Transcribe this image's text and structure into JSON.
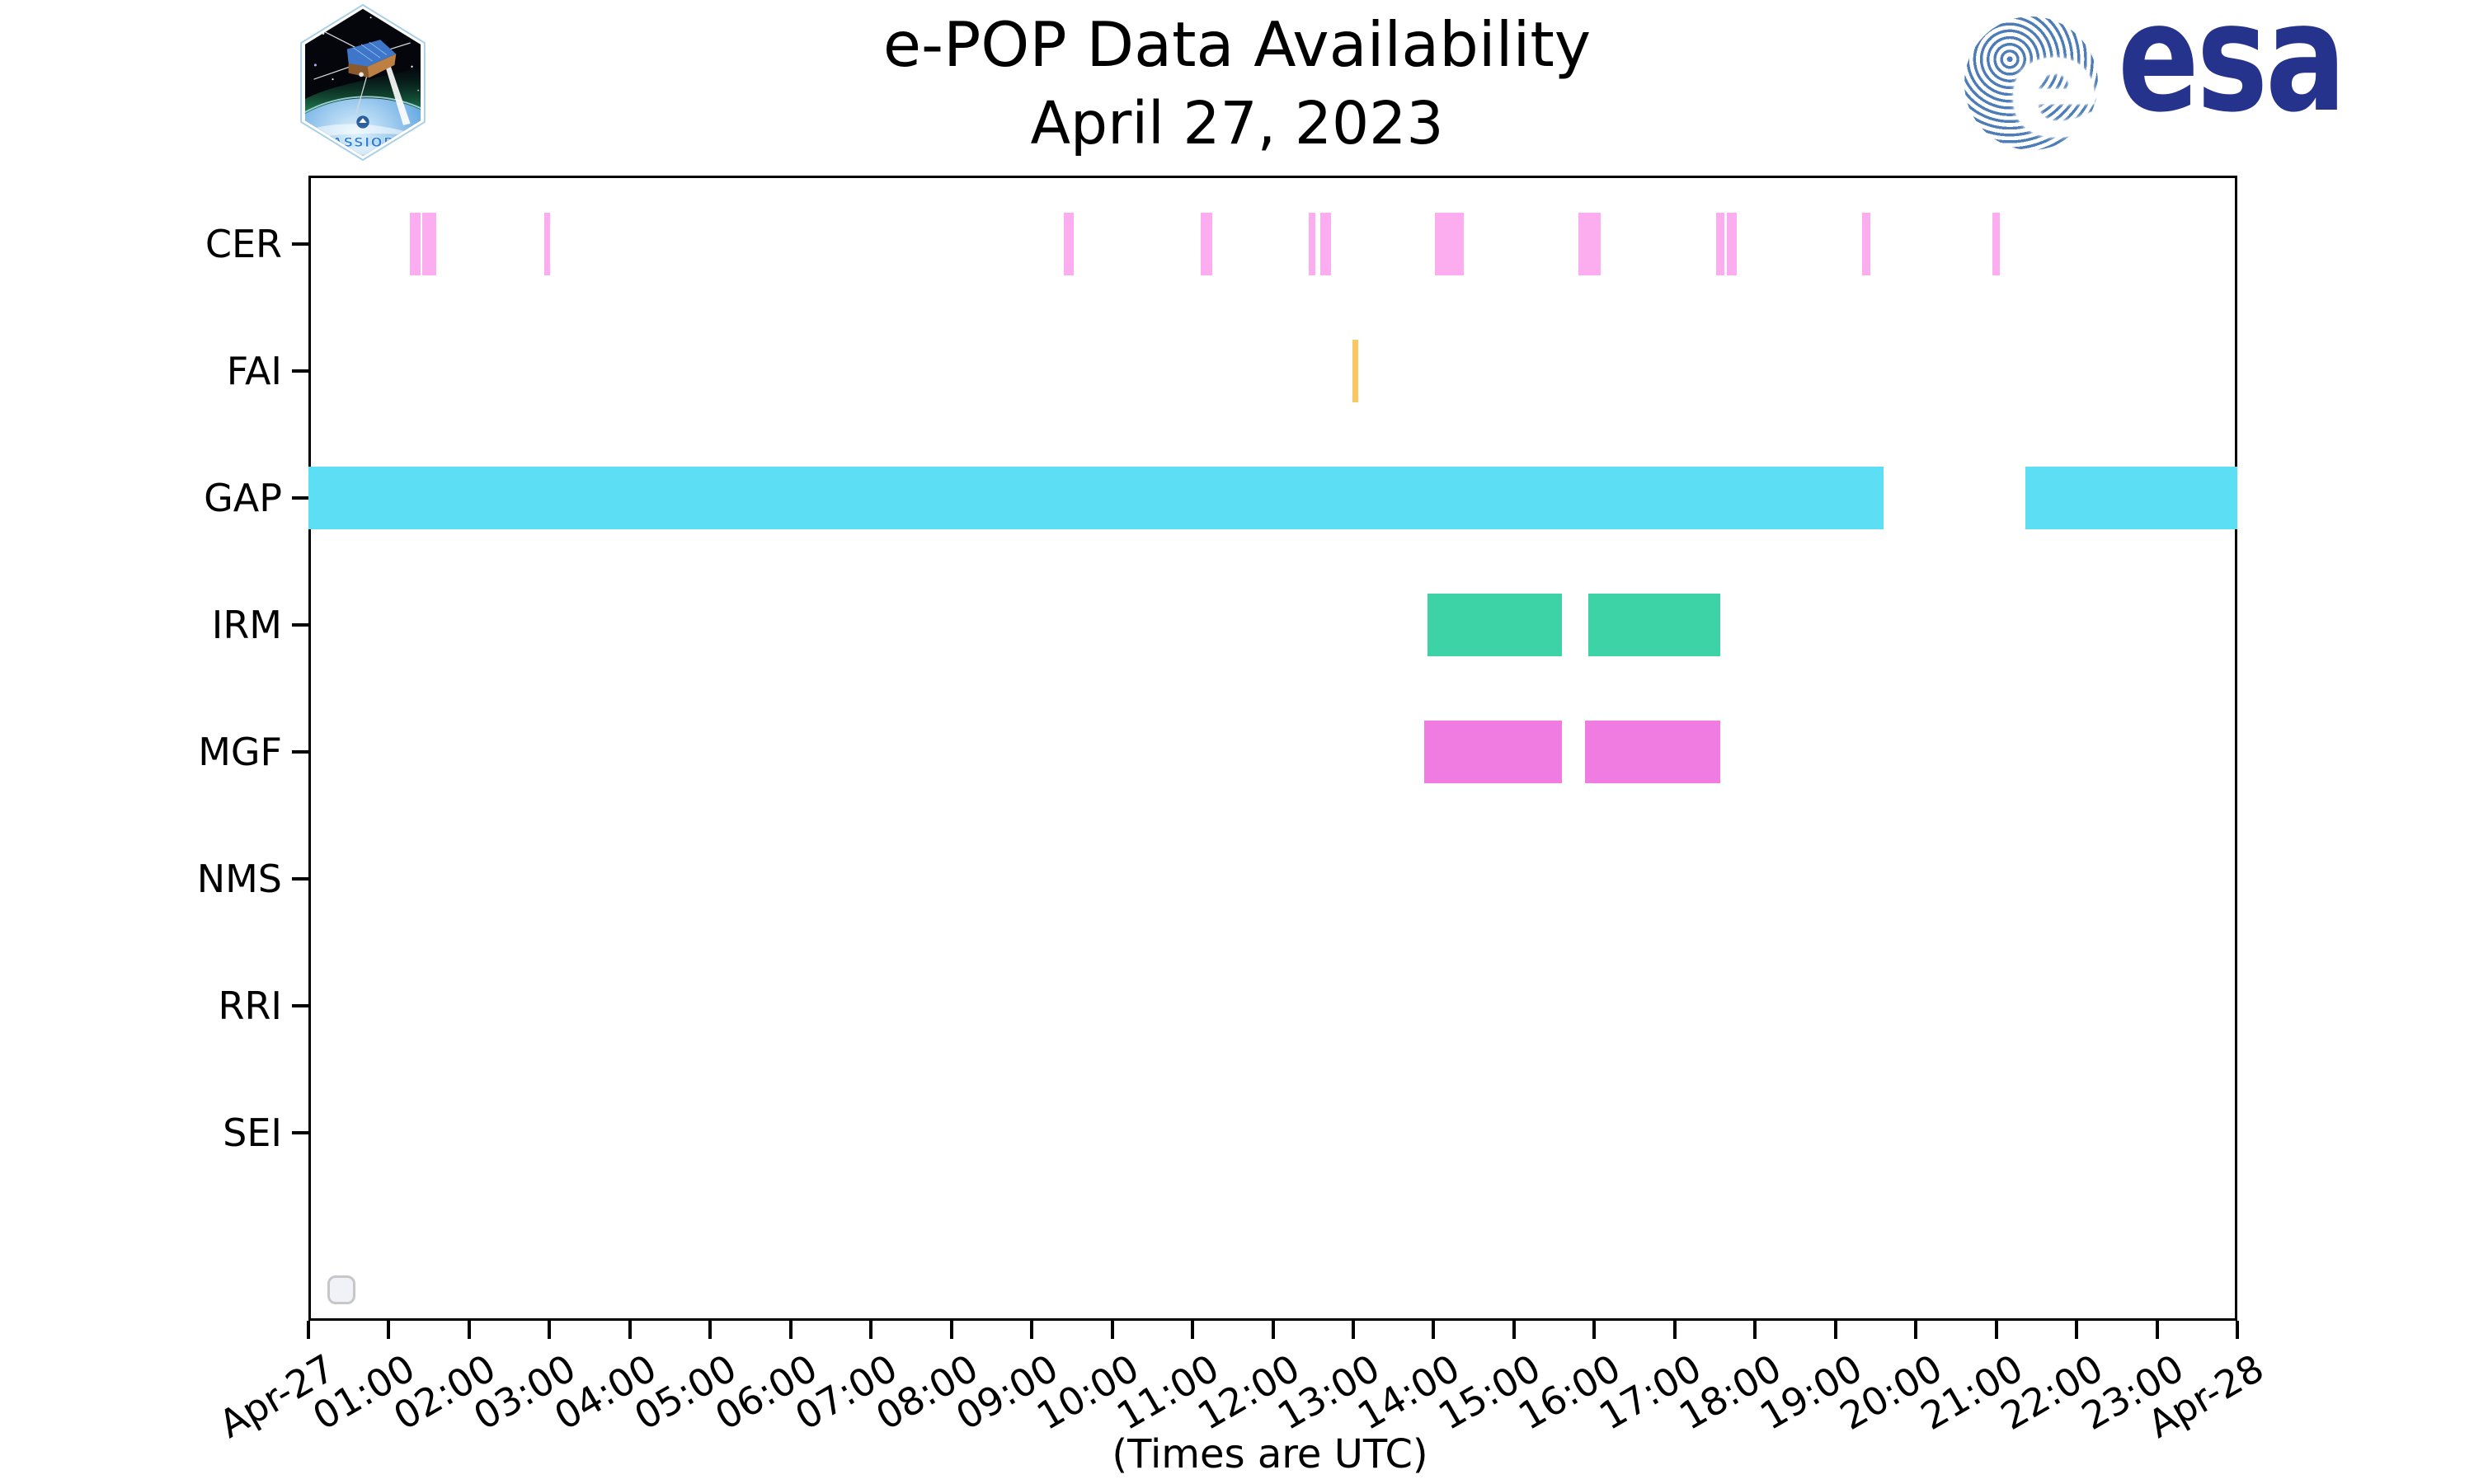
{
  "header": {
    "title_line1": "e-POP Data Availability",
    "title_line2": "April 27, 2023",
    "cassiope_patch_label": "CASSIOPE",
    "esa_logo_text": "esa",
    "esa_emblem_letter": "e"
  },
  "footer_note": "(Times are UTC)",
  "colors": {
    "cer": "#FBADEF",
    "fai": "#FAC862",
    "gap": "#5CDEF5",
    "irm": "#3DD3A7",
    "mgf": "#F17CE1",
    "axis": "#000000",
    "esa_blue": "#26338c",
    "esa_ripple": "#4d7db8"
  },
  "chart_data": {
    "type": "bar",
    "subtype": "gantt-availability-timeline",
    "title": "e-POP Data Availability April 27, 2023",
    "xlabel": "(Times are UTC)",
    "ylabel": "",
    "x_axis": {
      "unit": "hours UTC",
      "range_hours": [
        0,
        24
      ],
      "tick_labels": [
        "Apr-27",
        "01:00",
        "02:00",
        "03:00",
        "04:00",
        "05:00",
        "06:00",
        "07:00",
        "08:00",
        "09:00",
        "10:00",
        "11:00",
        "12:00",
        "13:00",
        "14:00",
        "15:00",
        "16:00",
        "17:00",
        "18:00",
        "19:00",
        "20:00",
        "21:00",
        "22:00",
        "23:00",
        "Apr-28"
      ],
      "tick_label_rotation_deg": 30
    },
    "y_axis": {
      "labels": [
        "CER",
        "FAI",
        "GAP",
        "IRM",
        "MGF",
        "NMS",
        "RRI",
        "SEI"
      ]
    },
    "grid": false,
    "legend_position": "lower-left (empty)",
    "rows": [
      {
        "label": "CER",
        "color": "#FBADEF",
        "segments": [
          [
            1.26,
            1.4
          ],
          [
            1.42,
            1.59
          ],
          [
            2.93,
            3.01
          ],
          [
            9.4,
            9.52
          ],
          [
            11.1,
            11.25
          ],
          [
            12.45,
            12.53
          ],
          [
            12.59,
            12.72
          ],
          [
            14.02,
            14.38
          ],
          [
            15.8,
            16.08
          ],
          [
            17.52,
            17.62
          ],
          [
            17.65,
            17.77
          ],
          [
            19.33,
            19.43
          ],
          [
            20.95,
            21.04
          ]
        ],
        "segments_hhmm": [
          "01:16-01:24",
          "01:25-01:35",
          "02:56-03:01",
          "09:24-09:31",
          "11:06-11:15",
          "12:27-12:32",
          "12:35-12:43",
          "14:01-14:23",
          "15:48-16:05",
          "17:31-17:37",
          "17:39-17:46",
          "19:20-19:26",
          "20:57-21:02"
        ]
      },
      {
        "label": "FAI",
        "color": "#FAC862",
        "segments": [
          [
            12.99,
            13.06
          ]
        ],
        "segments_hhmm": [
          "12:59-13:04"
        ]
      },
      {
        "label": "GAP",
        "color": "#5CDEF5",
        "segments": [
          [
            0.0,
            19.6
          ],
          [
            21.36,
            24.0
          ]
        ],
        "segments_hhmm": [
          "00:00-19:36",
          "21:22-24:00"
        ]
      },
      {
        "label": "IRM",
        "color": "#3DD3A7",
        "segments": [
          [
            13.92,
            15.6
          ],
          [
            15.92,
            17.57
          ]
        ],
        "segments_hhmm": [
          "13:55-15:36",
          "15:55-17:34"
        ]
      },
      {
        "label": "MGF",
        "color": "#F17CE1",
        "segments": [
          [
            13.88,
            15.6
          ],
          [
            15.88,
            17.57
          ]
        ],
        "segments_hhmm": [
          "13:53-15:36",
          "15:53-17:34"
        ]
      },
      {
        "label": "NMS",
        "color": "#999999",
        "segments": [],
        "segments_hhmm": []
      },
      {
        "label": "RRI",
        "color": "#999999",
        "segments": [],
        "segments_hhmm": []
      },
      {
        "label": "SEI",
        "color": "#999999",
        "segments": [],
        "segments_hhmm": []
      }
    ]
  }
}
